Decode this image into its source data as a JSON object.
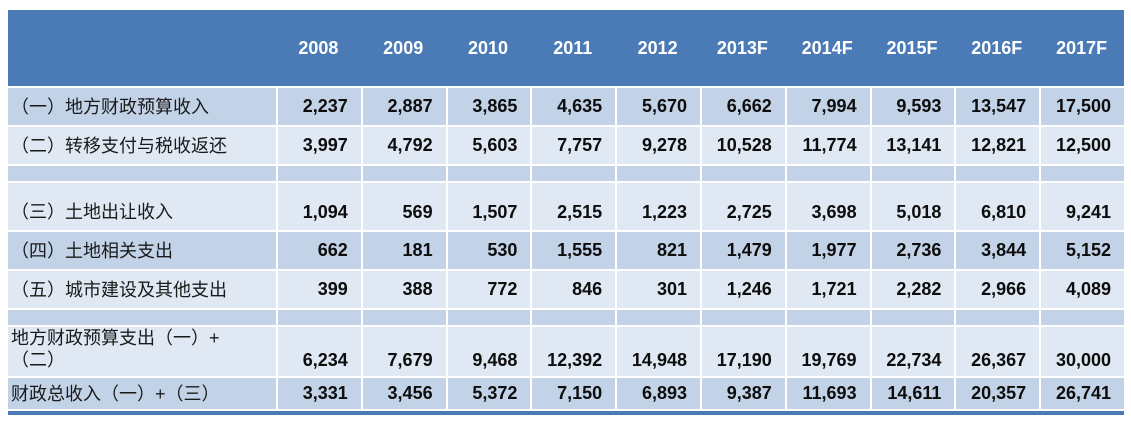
{
  "colors": {
    "header_bg": "#4a7bb7",
    "header_text": "#ffffff",
    "band_dark": "#c2d2e7",
    "band_light": "#dfe8f3",
    "label_text": "#1a1a1a",
    "value_text": "#0d0d0d"
  },
  "table": {
    "corner_label": "",
    "columns": [
      "2008",
      "2009",
      "2010",
      "2011",
      "2012",
      "2013F",
      "2014F",
      "2015F",
      "2016F",
      "2017F"
    ],
    "rows": [
      {
        "kind": "normal",
        "band": "dark",
        "label": "（一）地方财政预算收入",
        "values": [
          "2,237",
          "2,887",
          "3,865",
          "4,635",
          "5,670",
          "6,662",
          "7,994",
          "9,593",
          "13,547",
          "17,500"
        ]
      },
      {
        "kind": "normal",
        "band": "light",
        "label": "（二）转移支付与税收返还",
        "values": [
          "3,997",
          "4,792",
          "5,603",
          "7,757",
          "9,278",
          "10,528",
          "11,774",
          "13,141",
          "12,821",
          "12,500"
        ]
      },
      {
        "kind": "spacer",
        "band": "dark",
        "label": "",
        "values": [
          "",
          "",
          "",
          "",
          "",
          "",
          "",
          "",
          "",
          ""
        ]
      },
      {
        "kind": "tall",
        "band": "light",
        "label": "（三）土地出让收入",
        "values": [
          "1,094",
          "569",
          "1,507",
          "2,515",
          "1,223",
          "2,725",
          "3,698",
          "5,018",
          "6,810",
          "9,241"
        ]
      },
      {
        "kind": "normal",
        "band": "dark",
        "label": "（四）土地相关支出",
        "values": [
          "662",
          "181",
          "530",
          "1,555",
          "821",
          "1,479",
          "1,977",
          "2,736",
          "3,844",
          "5,152"
        ]
      },
      {
        "kind": "normal",
        "band": "light",
        "label": "（五）城市建设及其他支出",
        "values": [
          "399",
          "388",
          "772",
          "846",
          "301",
          "1,246",
          "1,721",
          "2,282",
          "2,966",
          "4,089"
        ]
      },
      {
        "kind": "spacer",
        "band": "dark",
        "label": "",
        "values": [
          "",
          "",
          "",
          "",
          "",
          "",
          "",
          "",
          "",
          ""
        ]
      },
      {
        "kind": "sum",
        "band": "light",
        "label": "地方财政预算支出（一）+\n（二）",
        "values": [
          "6,234",
          "7,679",
          "9,468",
          "12,392",
          "14,948",
          "17,190",
          "19,769",
          "22,734",
          "26,367",
          "30,000"
        ]
      },
      {
        "kind": "last",
        "band": "dark",
        "label": "财政总收入（一）+（三）",
        "values": [
          "3,331",
          "3,456",
          "5,372",
          "7,150",
          "6,893",
          "9,387",
          "11,693",
          "14,611",
          "20,357",
          "26,741"
        ]
      }
    ]
  },
  "chart_data": {
    "type": "table",
    "categories": [
      "2008",
      "2009",
      "2010",
      "2011",
      "2012",
      "2013F",
      "2014F",
      "2015F",
      "2016F",
      "2017F"
    ],
    "series": [
      {
        "name": "（一）地方财政预算收入",
        "values": [
          2237,
          2887,
          3865,
          4635,
          5670,
          6662,
          7994,
          9593,
          13547,
          17500
        ]
      },
      {
        "name": "（二）转移支付与税收返还",
        "values": [
          3997,
          4792,
          5603,
          7757,
          9278,
          10528,
          11774,
          13141,
          12821,
          12500
        ]
      },
      {
        "name": "（三）土地出让收入",
        "values": [
          1094,
          569,
          1507,
          2515,
          1223,
          2725,
          3698,
          5018,
          6810,
          9241
        ]
      },
      {
        "name": "（四）土地相关支出",
        "values": [
          662,
          181,
          530,
          1555,
          821,
          1479,
          1977,
          2736,
          3844,
          5152
        ]
      },
      {
        "name": "（五）城市建设及其他支出",
        "values": [
          399,
          388,
          772,
          846,
          301,
          1246,
          1721,
          2282,
          2966,
          4089
        ]
      },
      {
        "name": "地方财政预算支出（一）+（二）",
        "values": [
          6234,
          7679,
          9468,
          12392,
          14948,
          17190,
          19769,
          22734,
          26367,
          30000
        ]
      },
      {
        "name": "财政总收入（一）+（三）",
        "values": [
          3331,
          3456,
          5372,
          7150,
          6893,
          9387,
          11693,
          14611,
          20357,
          26741
        ]
      }
    ],
    "title": "",
    "layout_hints": {
      "header_row": "years",
      "banded_rows": true,
      "grid": "white vertical dividers between value columns"
    }
  }
}
